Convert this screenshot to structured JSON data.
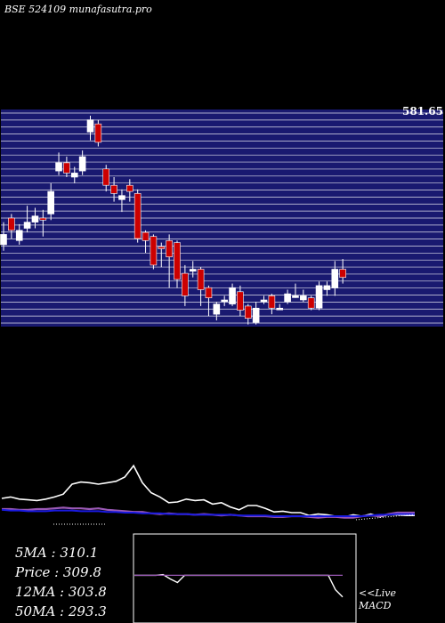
{
  "title": "BSE 524109 munafasutra.pro",
  "colors": {
    "background": "#000000",
    "price_panel": "#191970",
    "grid": "#ffffff",
    "bull_candle": "#ffffff",
    "bear_candle": "#cc0000",
    "rsi_line": "#ffffff",
    "ma_line_1": "#9b59b6",
    "ma_line_2": "#1a1adf",
    "macd_line": "#ffffff",
    "macd_signal": "#9b59b6"
  },
  "chart_data": [
    {
      "type": "candlestick",
      "y_top_label": "581.65",
      "candles": [
        {
          "o": 0.37,
          "c": 0.42,
          "h": 0.48,
          "l": 0.34
        },
        {
          "o": 0.5,
          "c": 0.44,
          "h": 0.52,
          "l": 0.4
        },
        {
          "o": 0.39,
          "c": 0.44,
          "h": 0.47,
          "l": 0.37
        },
        {
          "o": 0.45,
          "c": 0.48,
          "h": 0.56,
          "l": 0.43
        },
        {
          "o": 0.48,
          "c": 0.51,
          "h": 0.55,
          "l": 0.45
        },
        {
          "o": 0.5,
          "c": 0.49,
          "h": 0.54,
          "l": 0.41
        },
        {
          "o": 0.52,
          "c": 0.63,
          "h": 0.67,
          "l": 0.49
        },
        {
          "o": 0.73,
          "c": 0.77,
          "h": 0.82,
          "l": 0.71
        },
        {
          "o": 0.77,
          "c": 0.72,
          "h": 0.8,
          "l": 0.7
        },
        {
          "o": 0.7,
          "c": 0.72,
          "h": 0.75,
          "l": 0.67
        },
        {
          "o": 0.73,
          "c": 0.8,
          "h": 0.83,
          "l": 0.71
        },
        {
          "o": 0.92,
          "c": 0.98,
          "h": 1.0,
          "l": 0.88
        },
        {
          "o": 0.96,
          "c": 0.87,
          "h": 0.98,
          "l": 0.85
        },
        {
          "o": 0.74,
          "c": 0.66,
          "h": 0.76,
          "l": 0.63
        },
        {
          "o": 0.66,
          "c": 0.62,
          "h": 0.7,
          "l": 0.58
        },
        {
          "o": 0.59,
          "c": 0.61,
          "h": 0.64,
          "l": 0.53
        },
        {
          "o": 0.66,
          "c": 0.63,
          "h": 0.69,
          "l": 0.58
        },
        {
          "o": 0.62,
          "c": 0.4,
          "h": 0.64,
          "l": 0.38
        },
        {
          "o": 0.43,
          "c": 0.39,
          "h": 0.44,
          "l": 0.33
        },
        {
          "o": 0.41,
          "c": 0.27,
          "h": 0.42,
          "l": 0.25
        },
        {
          "o": 0.36,
          "c": 0.35,
          "h": 0.38,
          "l": 0.26
        },
        {
          "o": 0.39,
          "c": 0.31,
          "h": 0.42,
          "l": 0.16
        },
        {
          "o": 0.38,
          "c": 0.2,
          "h": 0.39,
          "l": 0.16
        },
        {
          "o": 0.23,
          "c": 0.12,
          "h": 0.27,
          "l": 0.07
        },
        {
          "o": 0.24,
          "c": 0.25,
          "h": 0.29,
          "l": 0.21
        },
        {
          "o": 0.25,
          "c": 0.15,
          "h": 0.26,
          "l": 0.07
        },
        {
          "o": 0.16,
          "c": 0.11,
          "h": 0.17,
          "l": 0.02
        },
        {
          "o": 0.03,
          "c": 0.08,
          "h": 0.09,
          "l": 0.0
        },
        {
          "o": 0.1,
          "c": 0.1,
          "h": 0.12,
          "l": 0.07
        },
        {
          "o": 0.08,
          "c": 0.16,
          "h": 0.18,
          "l": 0.07
        },
        {
          "o": 0.14,
          "c": 0.05,
          "h": 0.17,
          "l": 0.02
        },
        {
          "o": 0.07,
          "c": 0.01,
          "h": 0.08,
          "l": -0.02
        },
        {
          "o": -0.01,
          "c": 0.06,
          "h": 0.09,
          "l": -0.02
        },
        {
          "o": 0.09,
          "c": 0.1,
          "h": 0.12,
          "l": 0.08
        },
        {
          "o": 0.12,
          "c": 0.06,
          "h": 0.13,
          "l": 0.03
        },
        {
          "o": 0.06,
          "c": 0.06,
          "h": 0.08,
          "l": 0.05
        },
        {
          "o": 0.09,
          "c": 0.13,
          "h": 0.15,
          "l": 0.08
        },
        {
          "o": 0.12,
          "c": 0.12,
          "h": 0.18,
          "l": 0.11
        },
        {
          "o": 0.1,
          "c": 0.12,
          "h": 0.15,
          "l": 0.09
        },
        {
          "o": 0.11,
          "c": 0.06,
          "h": 0.12,
          "l": 0.05
        },
        {
          "o": 0.06,
          "c": 0.17,
          "h": 0.19,
          "l": 0.05
        },
        {
          "o": 0.15,
          "c": 0.17,
          "h": 0.19,
          "l": 0.12
        },
        {
          "o": 0.16,
          "c": 0.25,
          "h": 0.29,
          "l": 0.12
        },
        {
          "o": 0.25,
          "c": 0.21,
          "h": 0.3,
          "l": 0.18
        }
      ]
    },
    {
      "type": "line",
      "series": [
        {
          "values": [
            0.5,
            0.52,
            0.49,
            0.48,
            0.47,
            0.49,
            0.52,
            0.56,
            0.7,
            0.73,
            0.72,
            0.7,
            0.72,
            0.74,
            0.8,
            0.96,
            0.72,
            0.58,
            0.52,
            0.44,
            0.45,
            0.49,
            0.47,
            0.48,
            0.42,
            0.44,
            0.38,
            0.34,
            0.4,
            0.4,
            0.36,
            0.31,
            0.32,
            0.3,
            0.3,
            0.26,
            0.28,
            0.27,
            0.25,
            0.24,
            0.27,
            0.25,
            0.28,
            0.24,
            0.27,
            0.27,
            0.26,
            0.26
          ]
        },
        {
          "values": [
            0.35,
            0.35,
            0.34,
            0.34,
            0.35,
            0.35,
            0.36,
            0.37,
            0.36,
            0.36,
            0.35,
            0.36,
            0.34,
            0.33,
            0.32,
            0.31,
            0.31,
            0.29,
            0.28,
            0.29,
            0.28,
            0.28,
            0.27,
            0.28,
            0.27,
            0.26,
            0.27,
            0.26,
            0.25,
            0.25,
            0.25,
            0.24,
            0.24,
            0.25,
            0.25,
            0.24,
            0.23,
            0.24,
            0.24,
            0.23,
            0.23,
            0.25,
            0.26,
            0.25,
            0.28,
            0.3,
            0.3,
            0.3
          ]
        },
        {
          "values": [
            0.34,
            0.33,
            0.33,
            0.32,
            0.32,
            0.32,
            0.33,
            0.33,
            0.33,
            0.32,
            0.32,
            0.32,
            0.31,
            0.31,
            0.3,
            0.3,
            0.29,
            0.29,
            0.29,
            0.28,
            0.28,
            0.28,
            0.27,
            0.27,
            0.27,
            0.27,
            0.27,
            0.26,
            0.26,
            0.26,
            0.26,
            0.25,
            0.25,
            0.25,
            0.25,
            0.25,
            0.25,
            0.25,
            0.25,
            0.25,
            0.25,
            0.25,
            0.26,
            0.27,
            0.27,
            0.28,
            0.28,
            0.28
          ]
        }
      ]
    },
    {
      "type": "line",
      "series": [
        {
          "values": [
            0.6,
            0.6,
            0.6,
            0.6,
            0.61,
            0.55,
            0.5,
            0.6,
            0.6,
            0.6,
            0.6,
            0.6,
            0.6,
            0.6,
            0.6,
            0.6,
            0.6,
            0.6,
            0.6,
            0.6,
            0.6,
            0.6,
            0.6,
            0.6,
            0.6,
            0.6,
            0.6,
            0.6,
            0.4,
            0.3
          ]
        },
        {
          "values": [
            0.6,
            0.6,
            0.6,
            0.6,
            0.6,
            0.6,
            0.6,
            0.6,
            0.6,
            0.6,
            0.6,
            0.6,
            0.6,
            0.6,
            0.6,
            0.6,
            0.6,
            0.6,
            0.6,
            0.6,
            0.6,
            0.6,
            0.6,
            0.6,
            0.6,
            0.6,
            0.6,
            0.6,
            0.6,
            0.6
          ]
        }
      ]
    }
  ],
  "price_ticks": [
    "581.65",
    "",
    "",
    "",
    "",
    "",
    "",
    "",
    "",
    "",
    "",
    "",
    "",
    "",
    "",
    "",
    "",
    "",
    "",
    "",
    "",
    "",
    "",
    "",
    "",
    "",
    "",
    "",
    "",
    "",
    ""
  ],
  "stats": {
    "ma5": "5MA : 310.1",
    "price": "Price   : 309.8",
    "ma12": "12MA : 303.8",
    "ma50": "50MA : 293.3"
  },
  "macd": {
    "live_label": "<<Live",
    "name_label": "MACD"
  }
}
